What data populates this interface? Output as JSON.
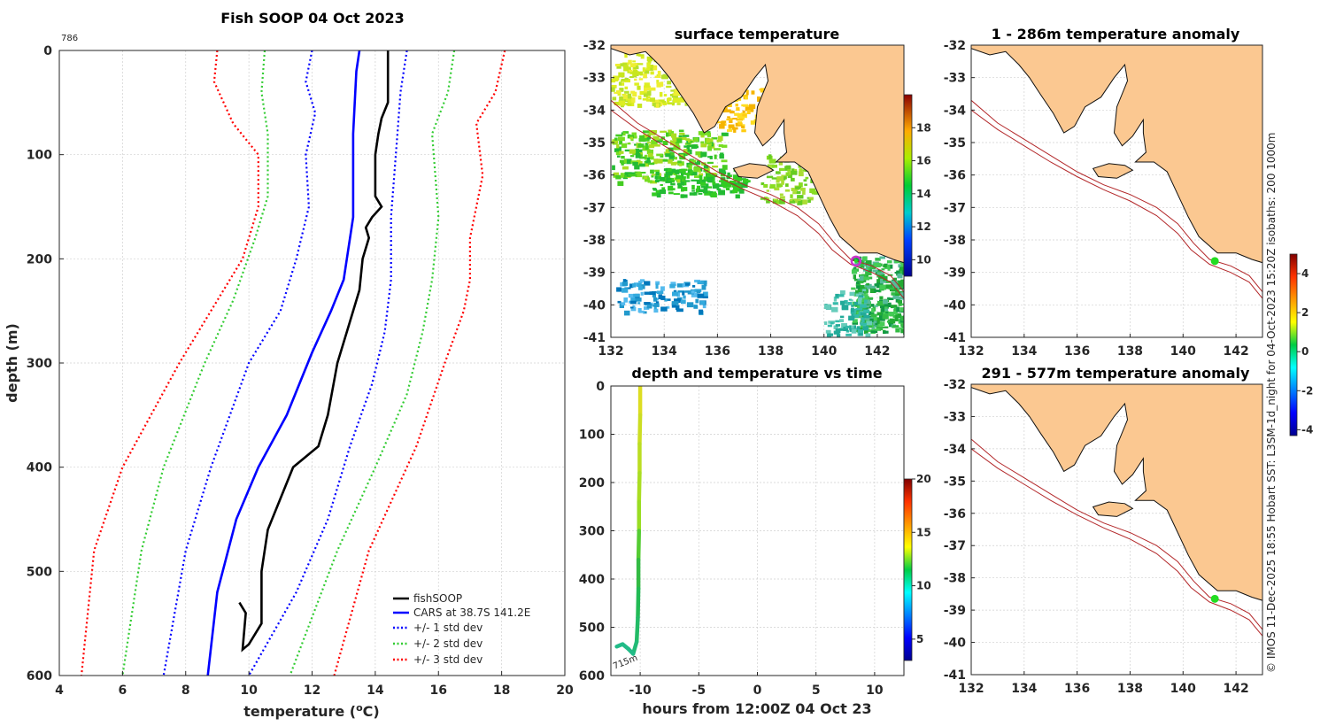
{
  "chart_data": [
    {
      "type": "line",
      "title": "Fish SOOP 04 Oct 2023",
      "id_label": "786",
      "xlabel": "temperature (",
      "xlabel_sup": "o",
      "xlabel_end": "C)",
      "ylabel": "depth (m)",
      "xlim": [
        4,
        20
      ],
      "ylim": [
        0,
        600
      ],
      "xticks": [
        "4",
        "6",
        "8",
        "10",
        "12",
        "14",
        "16",
        "18",
        "20"
      ],
      "yticks": [
        "0",
        "100",
        "200",
        "300",
        "400",
        "500",
        "600"
      ],
      "legend": [
        "fishSOOP",
        "CARS at 38.7S 141.2E",
        "+/- 1 std dev",
        "+/- 2 std dev",
        "+/- 3 std dev"
      ],
      "legend_position": "bottom-right",
      "series": [
        {
          "name": "fishSOOP",
          "color": "#000000",
          "style": "solid",
          "points": [
            [
              14.4,
              0
            ],
            [
              14.4,
              50
            ],
            [
              14.2,
              65
            ],
            [
              14.1,
              80
            ],
            [
              14.0,
              100
            ],
            [
              14.0,
              140
            ],
            [
              14.2,
              150
            ],
            [
              13.9,
              160
            ],
            [
              13.7,
              170
            ],
            [
              13.8,
              180
            ],
            [
              13.6,
              200
            ],
            [
              13.5,
              230
            ],
            [
              13.1,
              270
            ],
            [
              12.8,
              300
            ],
            [
              12.5,
              350
            ],
            [
              12.2,
              380
            ],
            [
              11.4,
              400
            ],
            [
              11.0,
              430
            ],
            [
              10.6,
              460
            ],
            [
              10.4,
              500
            ],
            [
              10.4,
              550
            ],
            [
              10.0,
              570
            ],
            [
              9.8,
              575
            ],
            [
              9.9,
              540
            ],
            [
              9.7,
              530
            ]
          ]
        },
        {
          "name": "CARS at 38.7S 141.2E",
          "color": "#0000ff",
          "style": "solid",
          "points": [
            [
              13.5,
              0
            ],
            [
              13.4,
              20
            ],
            [
              13.3,
              80
            ],
            [
              13.3,
              160
            ],
            [
              13.0,
              220
            ],
            [
              12.6,
              250
            ],
            [
              12.0,
              290
            ],
            [
              11.2,
              350
            ],
            [
              10.3,
              400
            ],
            [
              9.6,
              450
            ],
            [
              9.0,
              520
            ],
            [
              8.7,
              600
            ]
          ]
        },
        {
          "name": "+/- 1 std dev",
          "color": "#0000ff",
          "style": "dotted",
          "points": [
            [
              15.0,
              0
            ],
            [
              14.8,
              40
            ],
            [
              14.7,
              80
            ],
            [
              14.5,
              160
            ],
            [
              14.5,
              220
            ],
            [
              14.3,
              270
            ],
            [
              13.9,
              320
            ],
            [
              13.2,
              380
            ],
            [
              12.5,
              450
            ],
            [
              11.5,
              520
            ],
            [
              10.0,
              600
            ]
          ]
        },
        {
          "name": "+/- 1 std dev",
          "color": "#0000ff",
          "style": "dotted",
          "points": [
            [
              12.0,
              0
            ],
            [
              11.8,
              30
            ],
            [
              12.1,
              60
            ],
            [
              11.8,
              100
            ],
            [
              11.9,
              150
            ],
            [
              11.5,
              200
            ],
            [
              11.0,
              250
            ],
            [
              10.0,
              300
            ],
            [
              8.8,
              400
            ],
            [
              8.0,
              480
            ],
            [
              7.3,
              600
            ]
          ]
        },
        {
          "name": "+/- 2 std dev",
          "color": "#33cc33",
          "style": "dotted",
          "points": [
            [
              16.5,
              0
            ],
            [
              16.3,
              40
            ],
            [
              15.8,
              80
            ],
            [
              16.0,
              160
            ],
            [
              15.8,
              220
            ],
            [
              15.5,
              270
            ],
            [
              15.0,
              330
            ],
            [
              14.0,
              400
            ],
            [
              12.8,
              480
            ],
            [
              11.3,
              600
            ]
          ]
        },
        {
          "name": "+/- 2 std dev",
          "color": "#33cc33",
          "style": "dotted",
          "points": [
            [
              10.5,
              0
            ],
            [
              10.4,
              40
            ],
            [
              10.6,
              80
            ],
            [
              10.6,
              140
            ],
            [
              10.2,
              180
            ],
            [
              9.5,
              240
            ],
            [
              8.6,
              300
            ],
            [
              7.3,
              400
            ],
            [
              6.6,
              480
            ],
            [
              6.0,
              600
            ]
          ]
        },
        {
          "name": "+/- 3 std dev",
          "color": "#ff0000",
          "style": "dotted",
          "points": [
            [
              18.1,
              0
            ],
            [
              17.8,
              40
            ],
            [
              17.2,
              70
            ],
            [
              17.4,
              120
            ],
            [
              17.0,
              180
            ],
            [
              17.0,
              220
            ],
            [
              16.8,
              250
            ],
            [
              16.2,
              300
            ],
            [
              15.3,
              380
            ],
            [
              13.8,
              480
            ],
            [
              12.7,
              600
            ]
          ]
        },
        {
          "name": "+/- 3 std dev",
          "color": "#ff0000",
          "style": "dotted",
          "points": [
            [
              9.0,
              0
            ],
            [
              8.9,
              30
            ],
            [
              9.5,
              70
            ],
            [
              10.3,
              100
            ],
            [
              10.3,
              150
            ],
            [
              9.8,
              200
            ],
            [
              9.0,
              240
            ],
            [
              7.8,
              300
            ],
            [
              6.0,
              400
            ],
            [
              5.1,
              480
            ],
            [
              4.7,
              600
            ]
          ]
        }
      ]
    },
    {
      "type": "heatmap",
      "title": "surface temperature",
      "xlim": [
        132,
        143
      ],
      "ylim": [
        -41,
        -32
      ],
      "xticks": [
        "132",
        "134",
        "136",
        "138",
        "140",
        "142"
      ],
      "yticks": [
        "-32",
        "-33",
        "-34",
        "-35",
        "-36",
        "-37",
        "-38",
        "-39",
        "-40",
        "-41"
      ],
      "colorbar_ticks": [
        "18",
        "16",
        "14",
        "12",
        "10"
      ],
      "colorbar_range": [
        9,
        20
      ]
    },
    {
      "type": "scatter",
      "title": "depth and temperature vs time",
      "xlabel": "hours from 12:00Z 04 Oct 23",
      "xlim": [
        -12.5,
        12.5
      ],
      "ylim": [
        0,
        600
      ],
      "xticks": [
        "-10",
        "-5",
        "0",
        "5",
        "10"
      ],
      "yticks": [
        "0",
        "100",
        "200",
        "300",
        "400",
        "500",
        "600"
      ],
      "annotation": "715m",
      "colorbar_ticks": [
        "20",
        "15",
        "10",
        "5"
      ],
      "colorbar_range": [
        3,
        20
      ]
    },
    {
      "type": "heatmap",
      "title": "1 - 286m temperature anomaly",
      "xlim": [
        132,
        143
      ],
      "ylim": [
        -41,
        -32
      ],
      "xticks": [
        "132",
        "134",
        "136",
        "138",
        "140",
        "142"
      ],
      "yticks": [
        "-32",
        "-33",
        "-34",
        "-35",
        "-36",
        "-37",
        "-38",
        "-39",
        "-40",
        "-41"
      ],
      "colorbar_ticks": [
        "4",
        "2",
        "0",
        "-2",
        "-4"
      ],
      "colorbar_range": [
        -4.3,
        5
      ]
    },
    {
      "type": "heatmap",
      "title": "291 - 577m temperature anomaly",
      "xlim": [
        132,
        143
      ],
      "ylim": [
        -41,
        -32
      ],
      "xticks": [
        "132",
        "134",
        "136",
        "138",
        "140",
        "142"
      ],
      "yticks": [
        "-32",
        "-33",
        "-34",
        "-35",
        "-36",
        "-37",
        "-38",
        "-39",
        "-40",
        "-41"
      ]
    }
  ],
  "side_note": "© IMOS 11-Dec-2025 18:55 Hobart SST: L3SM-1d_night for 04-Oct-2023 15:20Z isobaths: 200  1000m",
  "colors": {
    "land": "#fbc891",
    "isobath": "#b3282a",
    "station_marker": "#22dd22",
    "highlight_marker": "#cc33cc"
  }
}
